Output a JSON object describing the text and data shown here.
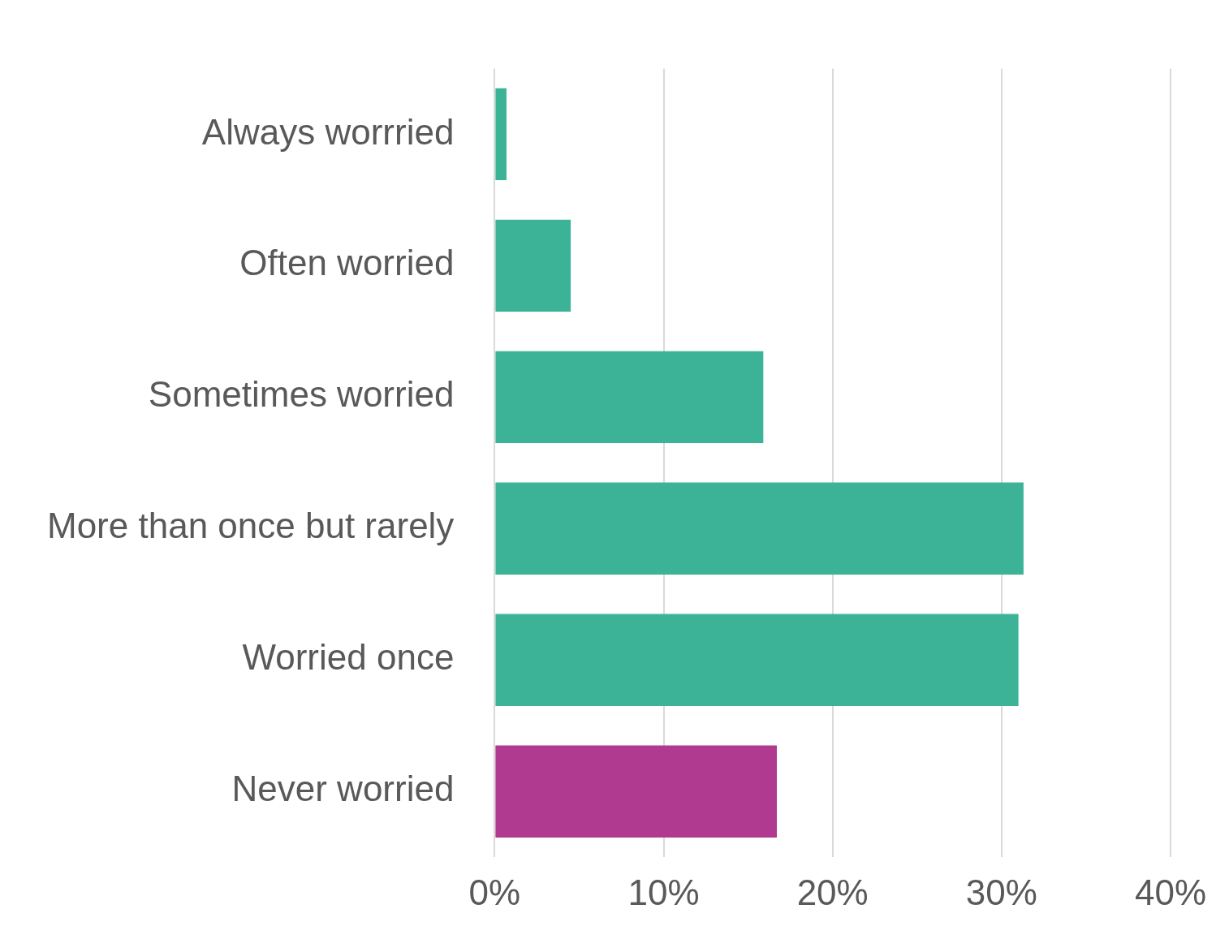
{
  "chart_data": {
    "type": "bar",
    "orientation": "horizontal",
    "categories": [
      "Always worrried",
      "Often worried",
      "Sometimes worried",
      "More than once but rarely",
      "Worried once",
      "Never worried"
    ],
    "values": [
      0.7,
      4.5,
      15.9,
      31.3,
      31.0,
      16.7
    ],
    "colors": [
      "#3cb396",
      "#3cb396",
      "#3cb396",
      "#3cb396",
      "#3cb396",
      "#b03a8f"
    ],
    "xlim": [
      0,
      40
    ],
    "xticks": [
      {
        "value": 0,
        "label": "0%"
      },
      {
        "value": 10,
        "label": "10%"
      },
      {
        "value": 20,
        "label": "20%"
      },
      {
        "value": 30,
        "label": "30%"
      },
      {
        "value": 40,
        "label": "40%"
      }
    ],
    "grid": "x",
    "legend": false
  }
}
